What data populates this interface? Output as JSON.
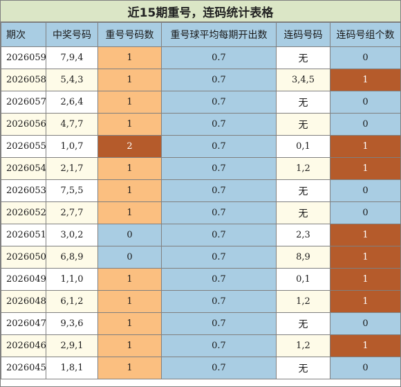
{
  "title": "近15期重号，连码统计表格",
  "headers": [
    "期次",
    "中奖号码",
    "重号号码数",
    "重号球平均每期开出数",
    "连码号码",
    "连码号组个数"
  ],
  "colors": {
    "header_bg": "#a9cde3",
    "title_bg": "#dbe6c6",
    "repeat_one": "#fbbf80",
    "repeat_zero": "#a9cde3",
    "highlight": "#b55b2b"
  },
  "rows": [
    {
      "period": "2026059",
      "numbers": "7,9,4",
      "repeat_count": "1",
      "avg": "0.7",
      "lian": "无",
      "lian_groups": "0"
    },
    {
      "period": "2026058",
      "numbers": "5,4,3",
      "repeat_count": "1",
      "avg": "0.7",
      "lian": "3,4,5",
      "lian_groups": "1"
    },
    {
      "period": "2026057",
      "numbers": "2,6,4",
      "repeat_count": "1",
      "avg": "0.7",
      "lian": "无",
      "lian_groups": "0"
    },
    {
      "period": "2026056",
      "numbers": "4,7,7",
      "repeat_count": "1",
      "avg": "0.7",
      "lian": "无",
      "lian_groups": "0"
    },
    {
      "period": "2026055",
      "numbers": "1,0,7",
      "repeat_count": "2",
      "avg": "0.7",
      "lian": "0,1",
      "lian_groups": "1"
    },
    {
      "period": "2026054",
      "numbers": "2,1,7",
      "repeat_count": "1",
      "avg": "0.7",
      "lian": "1,2",
      "lian_groups": "1"
    },
    {
      "period": "2026053",
      "numbers": "7,5,5",
      "repeat_count": "1",
      "avg": "0.7",
      "lian": "无",
      "lian_groups": "0"
    },
    {
      "period": "2026052",
      "numbers": "2,7,7",
      "repeat_count": "1",
      "avg": "0.7",
      "lian": "无",
      "lian_groups": "0"
    },
    {
      "period": "2026051",
      "numbers": "3,0,2",
      "repeat_count": "0",
      "avg": "0.7",
      "lian": "2,3",
      "lian_groups": "1"
    },
    {
      "period": "2026050",
      "numbers": "6,8,9",
      "repeat_count": "0",
      "avg": "0.7",
      "lian": "8,9",
      "lian_groups": "1"
    },
    {
      "period": "2026049",
      "numbers": "1,1,0",
      "repeat_count": "1",
      "avg": "0.7",
      "lian": "0,1",
      "lian_groups": "1"
    },
    {
      "period": "2026048",
      "numbers": "6,1,2",
      "repeat_count": "1",
      "avg": "0.7",
      "lian": "1,2",
      "lian_groups": "1"
    },
    {
      "period": "2026047",
      "numbers": "9,3,6",
      "repeat_count": "1",
      "avg": "0.7",
      "lian": "无",
      "lian_groups": "0"
    },
    {
      "period": "2026046",
      "numbers": "2,9,1",
      "repeat_count": "1",
      "avg": "0.7",
      "lian": "1,2",
      "lian_groups": "1"
    },
    {
      "period": "2026045",
      "numbers": "1,8,1",
      "repeat_count": "1",
      "avg": "0.7",
      "lian": "无",
      "lian_groups": "0"
    }
  ]
}
